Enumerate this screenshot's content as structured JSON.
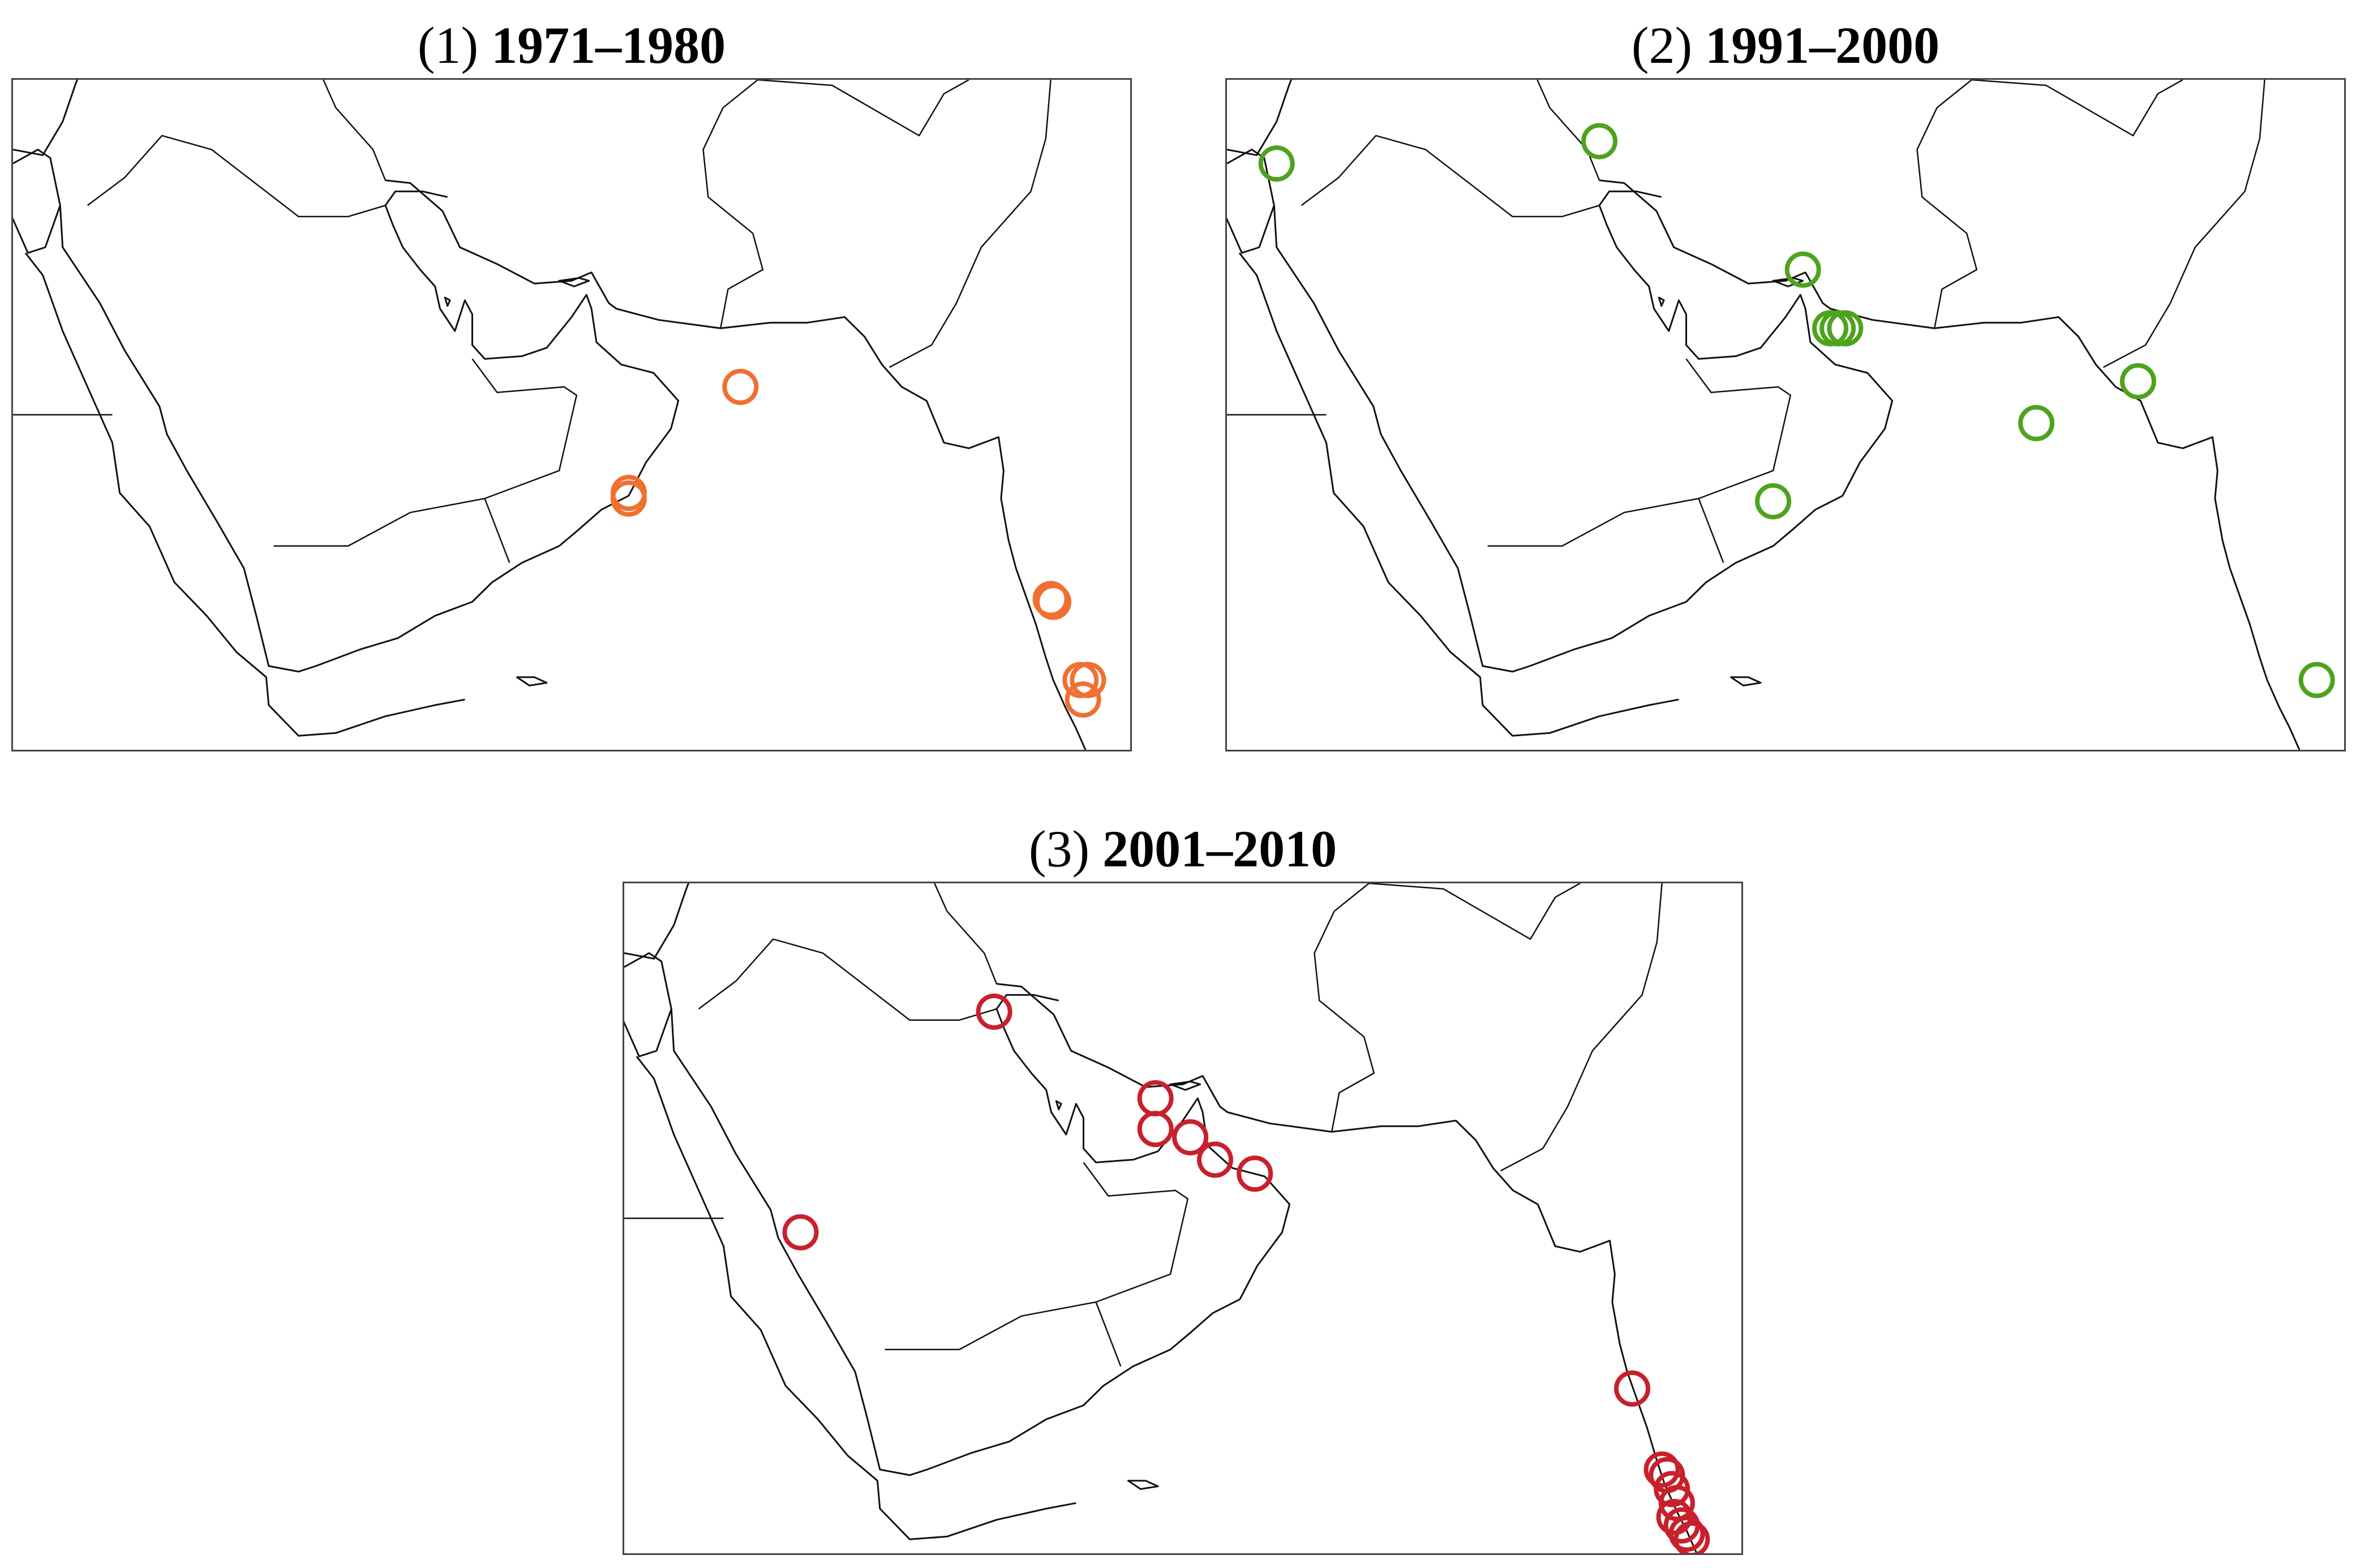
{
  "panels": [
    {
      "id": "1",
      "number_label": "(1)",
      "period_label": "1971–1980",
      "marker_color": "#f07030",
      "marker_semantic": "orange-circle-marker",
      "events": [
        {
          "lon": 62.3,
          "lat": 23.0
        },
        {
          "lon": 57.8,
          "lat": 19.2
        },
        {
          "lon": 57.8,
          "lat": 19.0
        },
        {
          "lon": 74.8,
          "lat": 15.4
        },
        {
          "lon": 74.9,
          "lat": 15.3
        },
        {
          "lon": 76.0,
          "lat": 12.5
        },
        {
          "lon": 76.3,
          "lat": 12.5
        },
        {
          "lon": 76.1,
          "lat": 11.8
        }
      ]
    },
    {
      "id": "2",
      "number_label": "(2)",
      "period_label": "1991–2000",
      "marker_color": "#4ea31e",
      "marker_semantic": "green-circle-marker",
      "events": [
        {
          "lon": 35.0,
          "lat": 31.0
        },
        {
          "lon": 48.0,
          "lat": 31.8
        },
        {
          "lon": 56.2,
          "lat": 27.2
        },
        {
          "lon": 57.3,
          "lat": 25.1
        },
        {
          "lon": 57.6,
          "lat": 25.1
        },
        {
          "lon": 57.9,
          "lat": 25.1
        },
        {
          "lon": 69.7,
          "lat": 23.2
        },
        {
          "lon": 65.6,
          "lat": 21.7
        },
        {
          "lon": 55.0,
          "lat": 18.9
        },
        {
          "lon": 76.9,
          "lat": 12.5
        }
      ]
    },
    {
      "id": "3",
      "number_label": "(3)",
      "period_label": "2001–2010",
      "marker_color": "#c8202c",
      "marker_semantic": "red-circle-marker",
      "events": [
        {
          "lon": 47.9,
          "lat": 29.4
        },
        {
          "lon": 54.4,
          "lat": 26.3
        },
        {
          "lon": 54.4,
          "lat": 25.2
        },
        {
          "lon": 55.8,
          "lat": 24.9
        },
        {
          "lon": 56.8,
          "lat": 24.1
        },
        {
          "lon": 58.4,
          "lat": 23.6
        },
        {
          "lon": 40.1,
          "lat": 21.5
        },
        {
          "lon": 73.6,
          "lat": 15.9
        },
        {
          "lon": 74.8,
          "lat": 13.0
        },
        {
          "lon": 75.0,
          "lat": 12.8
        },
        {
          "lon": 75.2,
          "lat": 12.3
        },
        {
          "lon": 75.4,
          "lat": 11.8
        },
        {
          "lon": 75.3,
          "lat": 11.3
        },
        {
          "lon": 75.6,
          "lat": 11.0
        },
        {
          "lon": 75.8,
          "lat": 10.7
        },
        {
          "lon": 76.0,
          "lat": 10.5
        }
      ]
    }
  ],
  "map_extent": {
    "lon_min": 33,
    "lon_max": 78,
    "lat_min": 10,
    "lat_max": 34
  }
}
